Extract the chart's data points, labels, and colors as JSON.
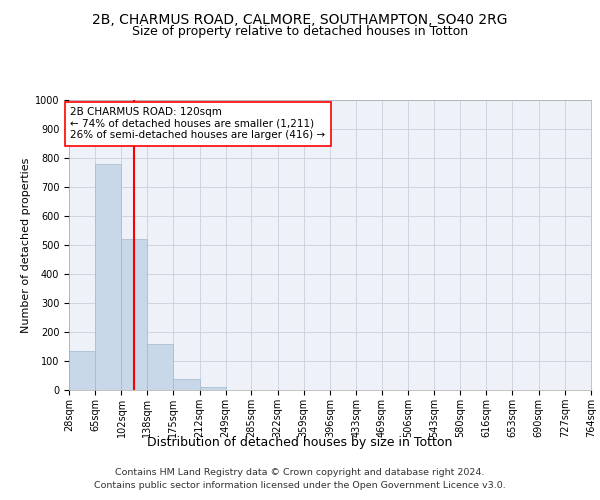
{
  "title_line1": "2B, CHARMUS ROAD, CALMORE, SOUTHAMPTON, SO40 2RG",
  "title_line2": "Size of property relative to detached houses in Totton",
  "xlabel": "Distribution of detached houses by size in Totton",
  "ylabel": "Number of detached properties",
  "bar_color": "#c8d8e8",
  "bar_edgecolor": "#a0b8d0",
  "grid_color": "#c8d0dc",
  "background_color": "#eef2f8",
  "bin_edges": [
    28,
    65,
    102,
    138,
    175,
    212,
    249,
    285,
    322,
    359,
    396,
    433,
    469,
    506,
    543,
    580,
    616,
    653,
    690,
    727,
    764
  ],
  "bin_labels": [
    "28sqm",
    "65sqm",
    "102sqm",
    "138sqm",
    "175sqm",
    "212sqm",
    "249sqm",
    "285sqm",
    "322sqm",
    "359sqm",
    "396sqm",
    "433sqm",
    "469sqm",
    "506sqm",
    "543sqm",
    "580sqm",
    "616sqm",
    "653sqm",
    "690sqm",
    "727sqm",
    "764sqm"
  ],
  "bar_heights": [
    133,
    778,
    522,
    158,
    38,
    12,
    0,
    0,
    0,
    0,
    0,
    0,
    0,
    0,
    0,
    0,
    0,
    0,
    0,
    0
  ],
  "vline_x": 120,
  "annotation_text": "2B CHARMUS ROAD: 120sqm\n← 74% of detached houses are smaller (1,211)\n26% of semi-detached houses are larger (416) →",
  "annotation_box_color": "white",
  "annotation_box_edgecolor": "red",
  "vline_color": "red",
  "ylim": [
    0,
    1000
  ],
  "yticks": [
    0,
    100,
    200,
    300,
    400,
    500,
    600,
    700,
    800,
    900,
    1000
  ],
  "footer_line1": "Contains HM Land Registry data © Crown copyright and database right 2024.",
  "footer_line2": "Contains public sector information licensed under the Open Government Licence v3.0.",
  "title_fontsize": 10,
  "subtitle_fontsize": 9,
  "ylabel_fontsize": 8,
  "xlabel_fontsize": 9,
  "annotation_fontsize": 7.5,
  "footer_fontsize": 6.8,
  "tick_fontsize": 7
}
